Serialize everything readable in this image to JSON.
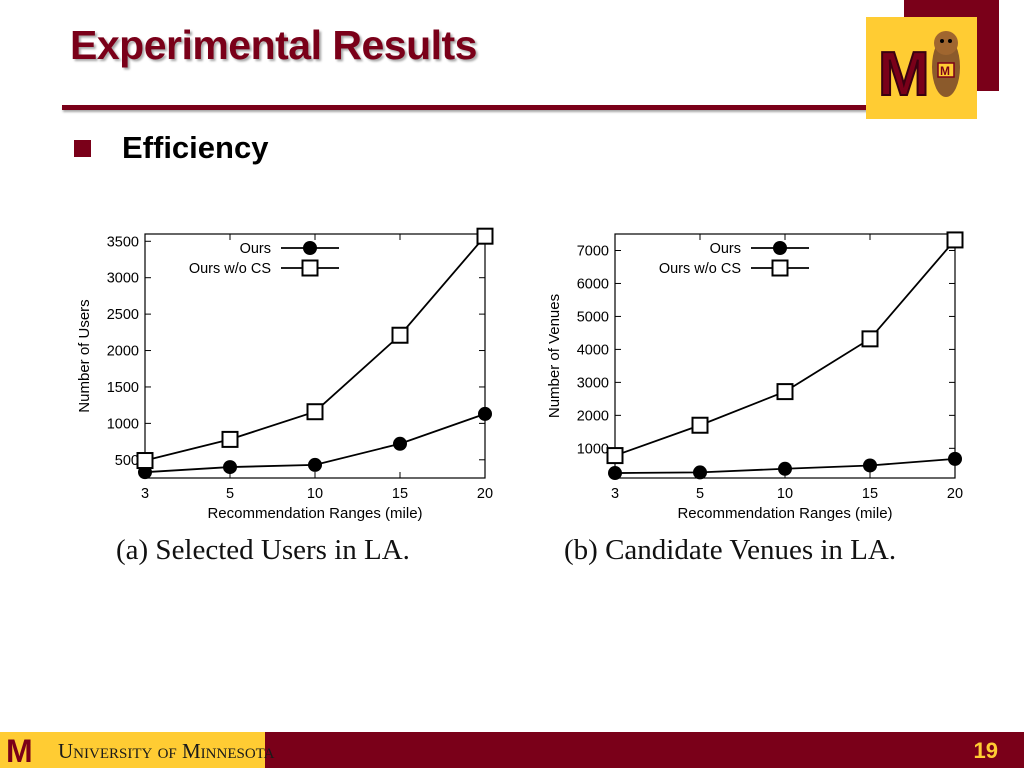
{
  "slide": {
    "title": "Experimental Results",
    "bullet": "Efficiency",
    "page_number": "19",
    "university_name": "University of Minnesota",
    "logo_text": "M",
    "colors": {
      "maroon": "#7a0019",
      "gold": "#ffcc33"
    }
  },
  "captions": [
    "(a)  Selected Users in LA.",
    "(b)  Candidate Venues in LA."
  ],
  "chart_data": [
    {
      "type": "line",
      "title": "",
      "xlabel": "Recommendation Ranges (mile)",
      "ylabel": "Number of Users",
      "categories": [
        "3",
        "5",
        "10",
        "15",
        "20"
      ],
      "ylim": [
        250,
        3600
      ],
      "yticks": [
        500,
        1000,
        1500,
        2000,
        2500,
        3000,
        3500
      ],
      "legend": "top-left",
      "grid": false,
      "series": [
        {
          "name": "Ours",
          "marker": "filled-circle",
          "values": [
            330,
            400,
            430,
            720,
            1130
          ]
        },
        {
          "name": "Ours w/o CS",
          "marker": "open-square",
          "values": [
            490,
            780,
            1160,
            2210,
            3570
          ]
        }
      ]
    },
    {
      "type": "line",
      "title": "",
      "xlabel": "Recommendation Ranges (mile)",
      "ylabel": "Number of Venues",
      "categories": [
        "3",
        "5",
        "10",
        "15",
        "20"
      ],
      "ylim": [
        100,
        7500
      ],
      "yticks": [
        1000,
        2000,
        3000,
        4000,
        5000,
        6000,
        7000
      ],
      "legend": "top-left",
      "grid": false,
      "series": [
        {
          "name": "Ours",
          "marker": "filled-circle",
          "values": [
            250,
            270,
            380,
            480,
            680
          ]
        },
        {
          "name": "Ours w/o CS",
          "marker": "open-square",
          "values": [
            780,
            1700,
            2720,
            4320,
            7320
          ]
        }
      ]
    }
  ]
}
